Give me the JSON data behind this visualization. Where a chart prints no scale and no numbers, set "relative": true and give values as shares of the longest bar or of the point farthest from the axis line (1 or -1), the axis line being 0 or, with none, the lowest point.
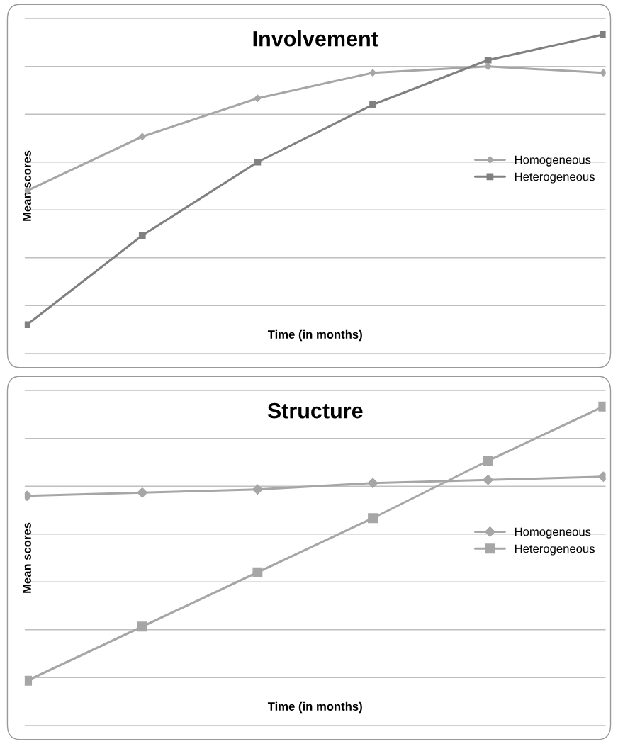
{
  "chart_data": [
    {
      "type": "line",
      "title": "Involvement",
      "xlabel": "Time (in months)",
      "ylabel": "Mean scores",
      "relative": true,
      "categories": [
        null,
        null,
        null,
        null,
        null,
        null
      ],
      "grid": "y",
      "legend": "right",
      "line_style": "solid",
      "series": [
        {
          "name": "Homogeneous",
          "color": "#a6a6a6",
          "marker": "diamond",
          "values": [
            0.51,
            0.68,
            0.8,
            0.88,
            0.9,
            0.88
          ]
        },
        {
          "name": "Heterogeneous",
          "color": "#808080",
          "marker": "square",
          "values": [
            0.09,
            0.37,
            0.6,
            0.78,
            0.92,
            1
          ]
        }
      ]
    },
    {
      "type": "line",
      "title": "Structure",
      "xlabel": "Time (in months)",
      "ylabel": "Mean scores",
      "relative": true,
      "categories": [
        null,
        null,
        null,
        null,
        null,
        null
      ],
      "grid": "y",
      "legend": "right",
      "line_style": "solid",
      "series": [
        {
          "name": "Homogeneous",
          "color": "#a6a6a6",
          "marker": "diamond",
          "values": [
            0.72,
            0.73,
            0.74,
            0.76,
            0.77,
            0.78
          ]
        },
        {
          "name": "Heterogeneous",
          "color": "#a6a6a6",
          "marker": "square",
          "values": [
            0.14,
            0.31,
            0.48,
            0.65,
            0.83,
            1
          ]
        }
      ]
    }
  ]
}
